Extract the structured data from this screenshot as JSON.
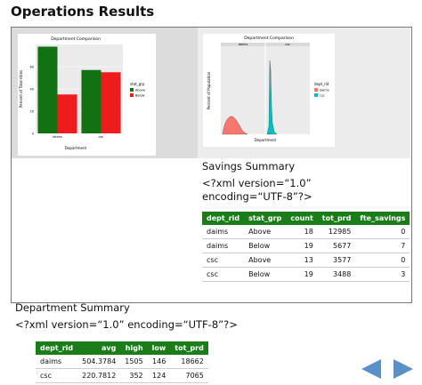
{
  "title": "Operations Results",
  "bar_chart": {
    "type": "bar",
    "title": "Department Comparison",
    "x_label": "Department",
    "y_label": "Percent of Total Hires",
    "legend_title": "stat_grp",
    "categories": [
      "daims",
      "csc"
    ],
    "series": [
      {
        "name": "Above",
        "color": "#127212",
        "values": [
          78,
          57
        ]
      },
      {
        "name": "Below",
        "color": "#ee1c1c",
        "values": [
          35,
          55
        ]
      }
    ],
    "ylim": [
      0,
      80
    ],
    "yticks": [
      0,
      20,
      40,
      60
    ]
  },
  "density_chart": {
    "title": "Department Comparison",
    "x_label": "Department",
    "y_label": "Percent of Population",
    "legend_title": "dept_rid",
    "facets": [
      "daims",
      "csc"
    ],
    "legend": [
      {
        "name": "daims",
        "color": "#f8766d"
      },
      {
        "name": "csc",
        "color": "#00bfc4"
      }
    ]
  },
  "savings": {
    "title": "Savings Summary",
    "xml": "<?xml version=“1.0” encoding=“UTF-8”?>",
    "table": {
      "columns": [
        "dept_rid",
        "stat_grp",
        "count",
        "tot_prd",
        "fte_savings"
      ],
      "rows": [
        [
          "daims",
          "Above",
          18,
          12985,
          0
        ],
        [
          "daims",
          "Below",
          19,
          5677,
          7
        ],
        [
          "csc",
          "Above",
          13,
          3577,
          0
        ],
        [
          "csc",
          "Below",
          19,
          3488,
          3
        ]
      ]
    }
  },
  "department": {
    "title": "Department Summary",
    "xml": "<?xml version=“1.0” encoding=“UTF-8”?>",
    "table": {
      "columns": [
        "dept_rid",
        "avg",
        "high",
        "low",
        "tot_prd"
      ],
      "rows": [
        [
          "daims",
          504.3784,
          1505,
          146,
          18662
        ],
        [
          "csc",
          220.7812,
          352,
          124,
          7065
        ]
      ]
    }
  }
}
